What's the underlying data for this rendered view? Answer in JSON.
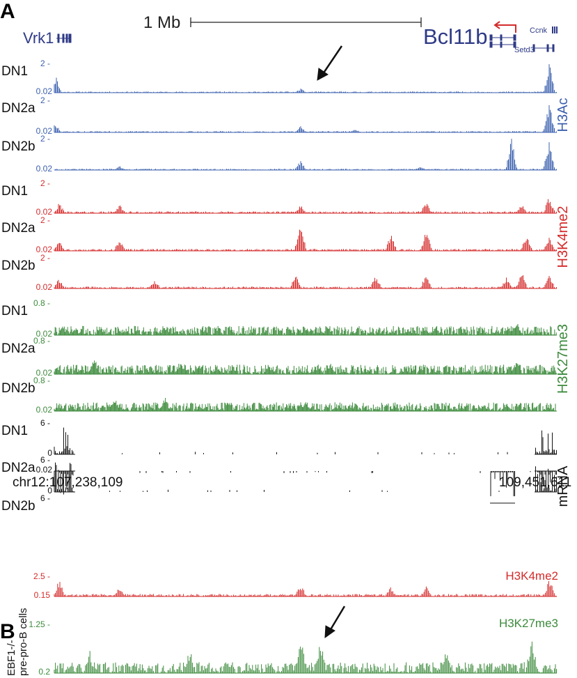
{
  "panels": {
    "a": "A",
    "b": "B"
  },
  "scale_bar": {
    "label": "1 Mb"
  },
  "genes": {
    "vrk1": "Vrk1",
    "bcl11b": "Bcl11b",
    "ccnk": "Ccnk",
    "setd3": "Setd3"
  },
  "coordinates": {
    "start": "chr12:107,238,109",
    "end": "109,451,611"
  },
  "colors": {
    "h3ac": "#3a5fae",
    "h3k4me2": "#d42a2a",
    "h3k27me3": "#3c8a3c",
    "mrna": "#111111",
    "gene": "#2e3a86"
  },
  "groups_a": [
    {
      "mark": "H3Ac",
      "color_key": "h3ac",
      "tracks": [
        {
          "sample": "DN1",
          "max": "2",
          "min": "0.02",
          "peaks": [
            [
              0.003,
              0.6
            ],
            [
              0.49,
              0.15
            ],
            [
              0.985,
              1.0
            ]
          ]
        },
        {
          "sample": "DN2a",
          "max": "2",
          "min": "0.02",
          "peaks": [
            [
              0.003,
              0.3
            ],
            [
              0.49,
              0.2
            ],
            [
              0.985,
              1.0
            ],
            [
              0.6,
              0.1
            ]
          ]
        },
        {
          "sample": "DN2b",
          "max": "2",
          "min": "0.02",
          "peaks": [
            [
              0.13,
              0.15
            ],
            [
              0.49,
              0.3
            ],
            [
              0.91,
              1.0
            ],
            [
              0.985,
              1.0
            ],
            [
              0.73,
              0.12
            ]
          ]
        }
      ]
    },
    {
      "mark": "H3K4me2",
      "color_key": "h3k4me2",
      "tracks": [
        {
          "sample": "DN1",
          "max": "2",
          "min": "0.02",
          "peaks": [
            [
              0.01,
              0.35
            ],
            [
              0.13,
              0.3
            ],
            [
              0.49,
              0.3
            ],
            [
              0.74,
              0.4
            ],
            [
              0.93,
              0.3
            ],
            [
              0.985,
              0.6
            ]
          ]
        },
        {
          "sample": "DN2a",
          "max": "2",
          "min": "0.02",
          "peaks": [
            [
              0.01,
              0.4
            ],
            [
              0.13,
              0.4
            ],
            [
              0.49,
              1.0
            ],
            [
              0.67,
              0.6
            ],
            [
              0.74,
              0.7
            ],
            [
              0.94,
              0.55
            ],
            [
              0.985,
              0.5
            ]
          ]
        },
        {
          "sample": "DN2b",
          "max": "2",
          "min": "0.02",
          "peaks": [
            [
              0.01,
              0.35
            ],
            [
              0.2,
              0.3
            ],
            [
              0.48,
              0.5
            ],
            [
              0.64,
              0.45
            ],
            [
              0.74,
              0.5
            ],
            [
              0.9,
              0.4
            ],
            [
              0.93,
              0.6
            ],
            [
              0.985,
              0.5
            ]
          ]
        }
      ]
    },
    {
      "mark": "H3K27me3",
      "color_key": "h3k27me3",
      "tracks": [
        {
          "sample": "DN1",
          "max": "0.8",
          "min": "0.02",
          "peaks": [
            [
              0.22,
              0.3
            ],
            [
              0.5,
              0.25
            ],
            [
              0.92,
              0.45
            ]
          ]
        },
        {
          "sample": "DN2a",
          "max": "0.8",
          "min": "0.02",
          "peaks": [
            [
              0.08,
              0.5
            ],
            [
              0.25,
              0.4
            ],
            [
              0.55,
              0.35
            ],
            [
              0.92,
              0.4
            ]
          ]
        },
        {
          "sample": "DN2b",
          "max": "0.8",
          "min": "0.02",
          "peaks": [
            [
              0.12,
              0.45
            ],
            [
              0.22,
              0.5
            ],
            [
              0.5,
              0.3
            ],
            [
              0.9,
              0.3
            ]
          ]
        }
      ]
    },
    {
      "mark": "mRNA",
      "color_key": "mrna",
      "tracks": [
        {
          "sample": "DN1",
          "max": "6",
          "min": "0"
        },
        {
          "sample": "DN2a",
          "max": "6",
          "min": "0"
        },
        {
          "sample": "DN2b",
          "max": "6",
          "min": "0.02"
        }
      ]
    }
  ],
  "panel_b": {
    "cell_label_line1": "EBF1-/-",
    "cell_label_line2": "pre-pro-B cells",
    "tracks": [
      {
        "mark": "H3K4me2",
        "color_key": "h3k4me2",
        "max": "2.5",
        "min": "0.15"
      },
      {
        "mark": "H3K27me3",
        "color_key": "h3k27me3",
        "max": "1.25",
        "min": "0.2"
      }
    ]
  }
}
